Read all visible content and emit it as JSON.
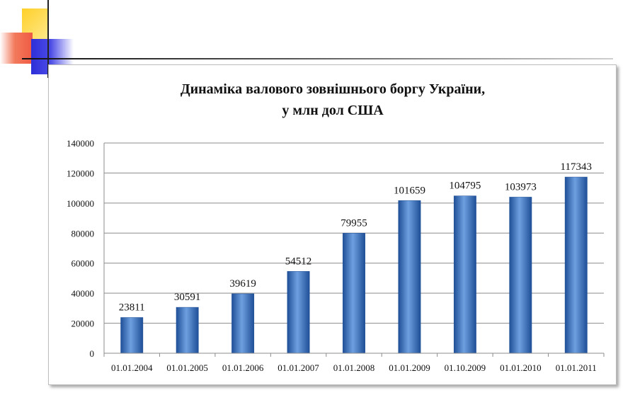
{
  "colors": {
    "bar": "#3a75c4",
    "bar_light": "#6ea0e0",
    "bar_dark": "#1f4f97",
    "grid": "#8c8c8c",
    "accent_yellow": "#ffd02a",
    "accent_red": "#ef5a44",
    "accent_blue": "#2d2fd8"
  },
  "chart_data": {
    "type": "bar",
    "title_lines": [
      "Динаміка валового  зовнішнього боргу України,",
      "у млн дол США"
    ],
    "categories": [
      "01.01.2004",
      "01.01.2005",
      "01.01.2006",
      "01.01.2007",
      "01.01.2008",
      "01.01.2009",
      "01.10.2009",
      "01.01.2010",
      "01.01.2011"
    ],
    "values": [
      23811,
      30591,
      39619,
      54512,
      79955,
      101659,
      104795,
      103973,
      117343
    ],
    "value_labels": [
      "23811",
      "30591",
      "39619",
      "54512",
      "79955",
      "101659",
      "104795",
      "103973",
      "117343"
    ],
    "y_ticks": [
      0,
      20000,
      40000,
      60000,
      80000,
      100000,
      120000,
      140000
    ],
    "y_tick_labels": [
      "0",
      "20000",
      "40000",
      "60000",
      "80000",
      "100000",
      "120000",
      "140000"
    ],
    "ylim": [
      0,
      140000
    ],
    "grid": true,
    "legend": "none"
  }
}
